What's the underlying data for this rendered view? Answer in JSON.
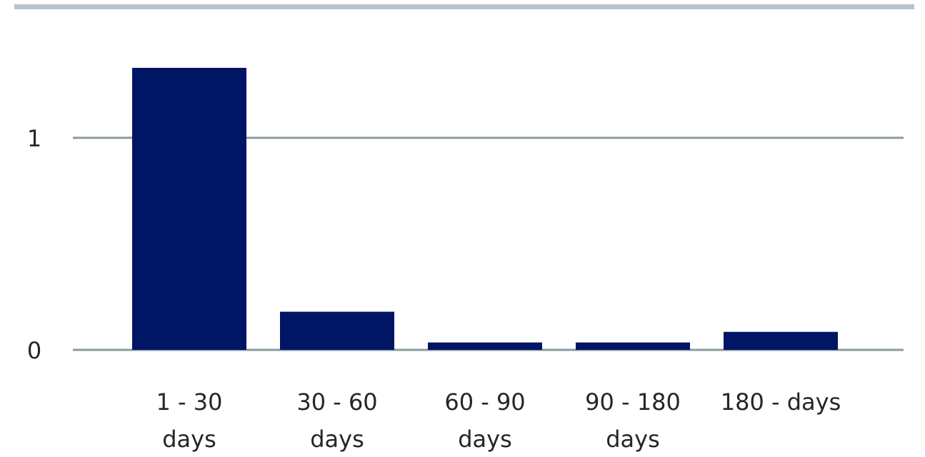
{
  "chart_data": {
    "type": "bar",
    "categories": [
      [
        "1 - 30",
        "days"
      ],
      [
        "30 - 60",
        "days"
      ],
      [
        "60 - 90",
        "days"
      ],
      [
        "90 - 180",
        "days"
      ],
      [
        "180 - days"
      ]
    ],
    "values": [
      1.33,
      0.18,
      0.035,
      0.035,
      0.085
    ],
    "ylim": [
      0,
      1.33
    ],
    "yticks": [
      0,
      1
    ],
    "title": "",
    "xlabel": "",
    "ylabel": "",
    "grid": true,
    "colors": {
      "bar": "#001664",
      "gridline": "#8c9aa1",
      "top_band": "#b9c2c8"
    }
  }
}
